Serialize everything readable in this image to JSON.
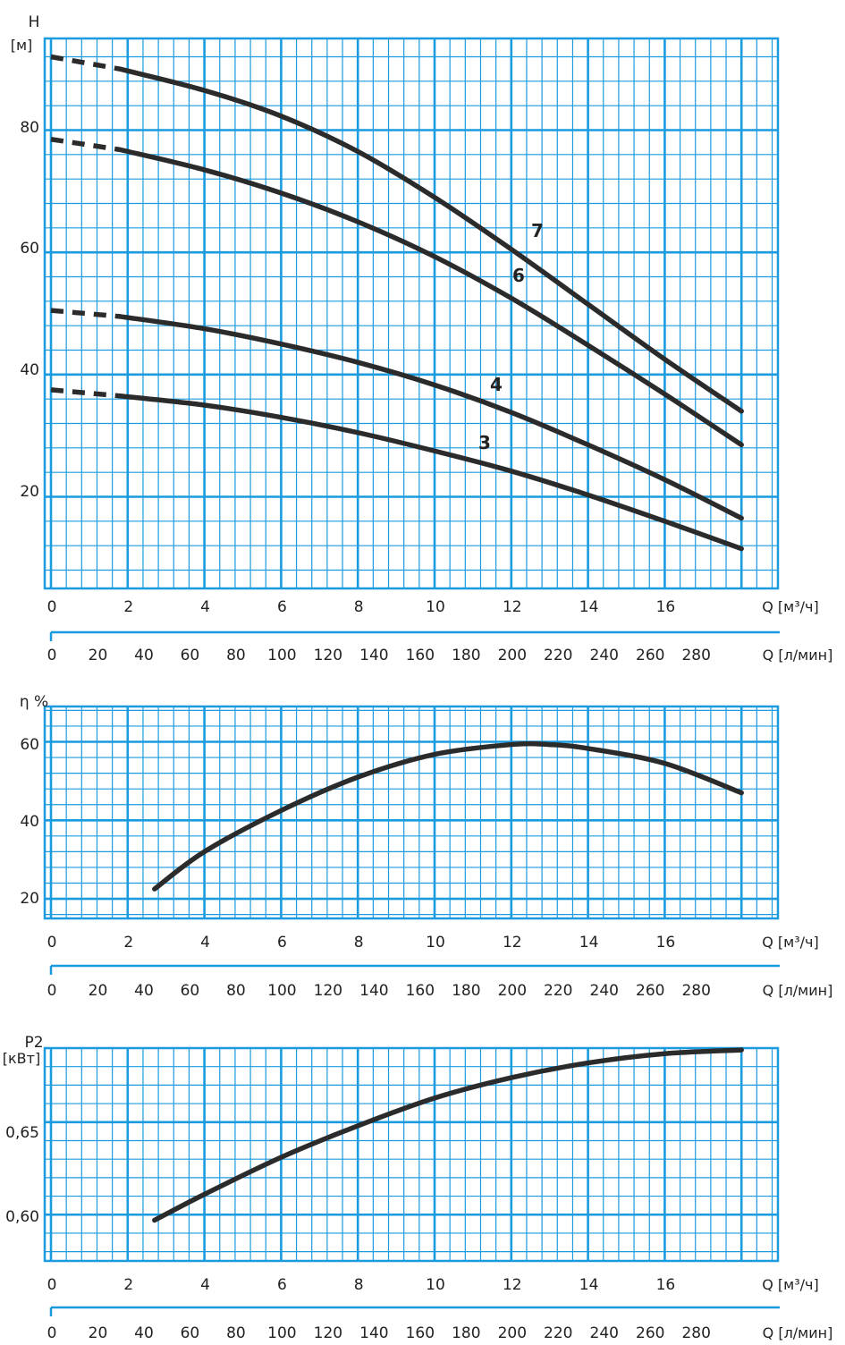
{
  "colors": {
    "grid": "#1a9be0",
    "curve": "#2b2b2b",
    "text": "#222222"
  },
  "x_axes": {
    "m3h": {
      "unit": "Q [м³/ч]",
      "ticks": [
        "0",
        "2",
        "4",
        "6",
        "8",
        "10",
        "12",
        "14",
        "16"
      ]
    },
    "lmin": {
      "unit": "Q [л/мин]",
      "ticks": [
        "0",
        "20",
        "40",
        "60",
        "80",
        "100",
        "120",
        "140",
        "160",
        "180",
        "200",
        "220",
        "240",
        "260",
        "280"
      ]
    }
  },
  "chart_data": [
    {
      "type": "line",
      "ylabel_top": "H",
      "ylabel_unit": "[м]",
      "ytick_labels": [
        "20",
        "40",
        "60",
        "80"
      ],
      "ylim": [
        5,
        95
      ],
      "xlim": [
        0,
        19
      ],
      "grid": true,
      "series": [
        {
          "name": "7",
          "dashed_segment": [
            [
              0,
              92.0
            ],
            [
              1.8,
              90.0
            ]
          ],
          "points": [
            [
              1.8,
              90.0
            ],
            [
              4,
              86.5
            ],
            [
              6,
              82.3
            ],
            [
              8,
              76.5
            ],
            [
              10,
              69.0
            ],
            [
              12,
              60.5
            ],
            [
              14,
              51.5
            ],
            [
              16,
              42.5
            ],
            [
              18,
              34.0
            ]
          ]
        },
        {
          "name": "6",
          "dashed_segment": [
            [
              0,
              78.5
            ],
            [
              1.8,
              76.8
            ]
          ],
          "points": [
            [
              1.8,
              76.8
            ],
            [
              4,
              73.5
            ],
            [
              6,
              69.7
            ],
            [
              8,
              65.0
            ],
            [
              10,
              59.3
            ],
            [
              12,
              52.5
            ],
            [
              14,
              44.8
            ],
            [
              16,
              36.8
            ],
            [
              18,
              28.5
            ]
          ]
        },
        {
          "name": "4",
          "dashed_segment": [
            [
              0,
              50.5
            ],
            [
              1.8,
              49.5
            ]
          ],
          "points": [
            [
              1.8,
              49.5
            ],
            [
              4,
              47.5
            ],
            [
              6,
              45.0
            ],
            [
              8,
              42.0
            ],
            [
              10,
              38.3
            ],
            [
              12,
              33.8
            ],
            [
              14,
              28.5
            ],
            [
              16,
              22.8
            ],
            [
              18,
              16.5
            ]
          ]
        },
        {
          "name": "3",
          "dashed_segment": [
            [
              0,
              37.5
            ],
            [
              1.8,
              36.5
            ]
          ],
          "points": [
            [
              1.8,
              36.5
            ],
            [
              4,
              35.0
            ],
            [
              6,
              33.0
            ],
            [
              8,
              30.5
            ],
            [
              10,
              27.5
            ],
            [
              12,
              24.2
            ],
            [
              14,
              20.3
            ],
            [
              16,
              16.0
            ],
            [
              18,
              11.5
            ]
          ]
        }
      ]
    },
    {
      "type": "line",
      "ylabel_top": "η %",
      "ylabel_unit": "",
      "ytick_labels": [
        "20",
        "40",
        "60"
      ],
      "ylim": [
        15,
        69
      ],
      "xlim": [
        0,
        19
      ],
      "grid": true,
      "series": [
        {
          "points": [
            [
              2.7,
              22.5
            ],
            [
              4,
              32.0
            ],
            [
              6,
              42.5
            ],
            [
              8,
              51.0
            ],
            [
              10,
              56.8
            ],
            [
              12,
              59.3
            ],
            [
              13,
              59.3
            ],
            [
              14,
              58.3
            ],
            [
              16,
              54.5
            ],
            [
              18,
              47.0
            ]
          ]
        }
      ]
    },
    {
      "type": "line",
      "ylabel_top": "P2",
      "ylabel_unit": "[кВт]",
      "ytick_labels": [
        "0,60",
        "0,65"
      ],
      "ylim": [
        0.575,
        0.69
      ],
      "xlim": [
        0,
        19
      ],
      "grid": true,
      "series": [
        {
          "points": [
            [
              2.7,
              0.597
            ],
            [
              4,
              0.611
            ],
            [
              6,
              0.631
            ],
            [
              8,
              0.648
            ],
            [
              10,
              0.663
            ],
            [
              12,
              0.674
            ],
            [
              14,
              0.682
            ],
            [
              16,
              0.687
            ],
            [
              18,
              0.689
            ]
          ]
        }
      ]
    }
  ]
}
